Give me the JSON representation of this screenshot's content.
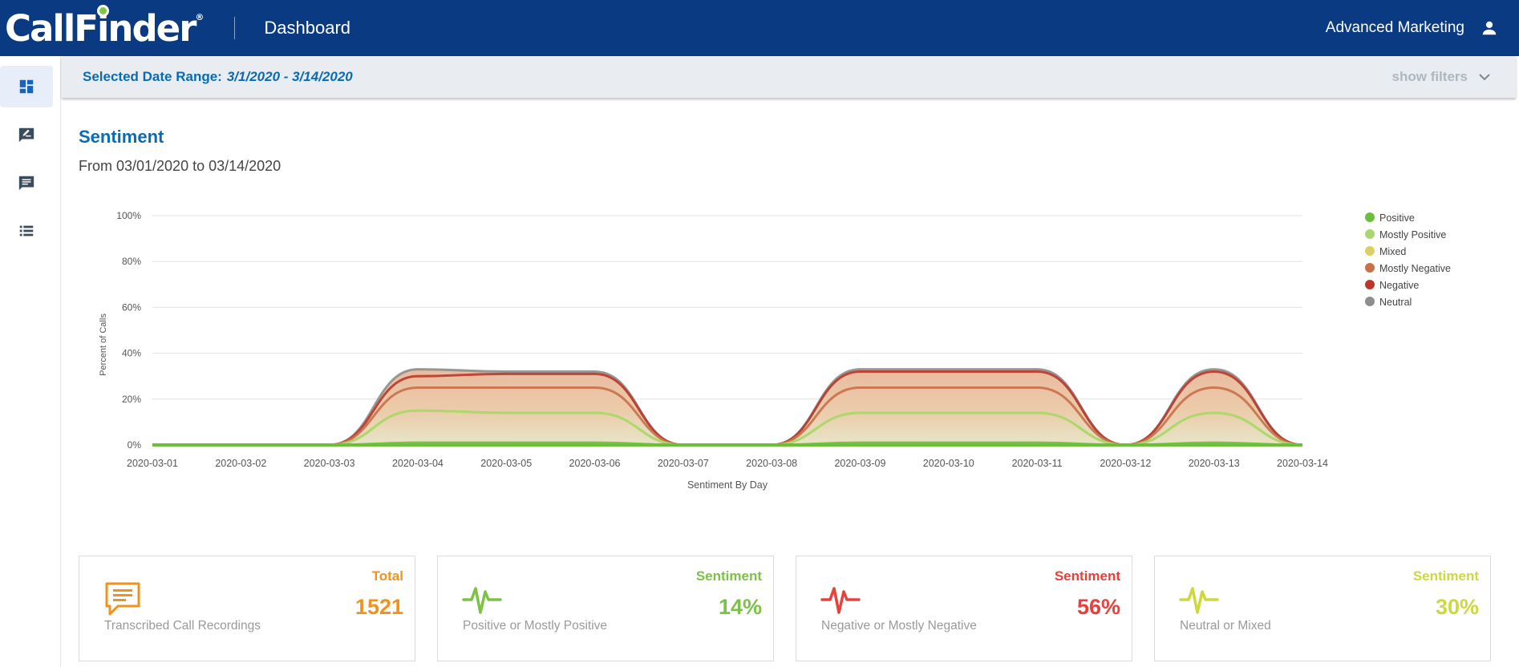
{
  "header": {
    "logo_main": "CallF",
    "logo_i": "i",
    "logo_end": "nder",
    "logo_reg": "®",
    "title": "Dashboard",
    "account": "Advanced Marketing",
    "bg_color": "#0a3a82"
  },
  "sidebar": {
    "items": [
      {
        "icon": "dashboard-icon",
        "active": true
      },
      {
        "icon": "edit-note-icon",
        "active": false
      },
      {
        "icon": "chat-icon",
        "active": false
      },
      {
        "icon": "list-icon",
        "active": false
      }
    ]
  },
  "filterbar": {
    "label": "Selected Date Range:",
    "value": "3/1/2020 - 3/14/2020",
    "show_filters": "show filters"
  },
  "section": {
    "title": "Sentiment",
    "subtitle": "From 03/01/2020 to 03/14/2020"
  },
  "chart_data": {
    "type": "area",
    "stacked": true,
    "xlabel": "Sentiment By Day",
    "ylabel": "Percent of Calls",
    "ylim": [
      0,
      100
    ],
    "y_ticks": [
      "0%",
      "20%",
      "40%",
      "60%",
      "80%",
      "100%"
    ],
    "x": [
      "2020-03-01",
      "2020-03-02",
      "2020-03-03",
      "2020-03-04",
      "2020-03-05",
      "2020-03-06",
      "2020-03-07",
      "2020-03-08",
      "2020-03-09",
      "2020-03-10",
      "2020-03-11",
      "2020-03-12",
      "2020-03-13",
      "2020-03-14"
    ],
    "legend_position": "right",
    "grid": true,
    "series": [
      {
        "name": "Positive",
        "color": "#6cbf3a",
        "values": [
          0,
          0,
          0,
          1,
          1,
          1,
          0,
          0,
          1,
          1,
          1,
          0,
          1,
          0
        ]
      },
      {
        "name": "Mostly Positive",
        "color": "#a6d86e",
        "values": [
          0,
          0,
          0,
          14,
          13,
          13,
          0,
          0,
          13,
          13,
          13,
          0,
          13,
          0
        ]
      },
      {
        "name": "Mixed",
        "color": "#dccf67",
        "values": [
          0,
          0,
          0,
          0,
          0,
          0,
          0,
          0,
          0,
          0,
          0,
          0,
          0,
          0
        ]
      },
      {
        "name": "Mostly Negative",
        "color": "#c9704a",
        "values": [
          0,
          0,
          0,
          10,
          11,
          11,
          0,
          0,
          11,
          11,
          11,
          0,
          11,
          0
        ]
      },
      {
        "name": "Negative",
        "color": "#b8392a",
        "values": [
          0,
          0,
          0,
          5,
          6,
          6,
          0,
          0,
          7,
          7,
          7,
          0,
          7,
          0
        ]
      },
      {
        "name": "Neutral",
        "color": "#8e8e8e",
        "values": [
          0,
          0,
          0,
          3,
          1,
          1,
          0,
          0,
          1,
          1,
          1,
          0,
          1,
          0
        ]
      }
    ]
  },
  "cards": [
    {
      "kind": "Total",
      "value": "1521",
      "desc": "Transcribed Call Recordings",
      "color": "#f0921e",
      "icon": "chat-bubble-icon"
    },
    {
      "kind": "Sentiment",
      "value": "14%",
      "desc": "Positive or Mostly Positive",
      "color": "#7cc243",
      "icon": "pulse-icon"
    },
    {
      "kind": "Sentiment",
      "value": "56%",
      "desc": "Negative or Mostly Negative",
      "color": "#e8403a",
      "icon": "pulse-icon"
    },
    {
      "kind": "Sentiment",
      "value": "30%",
      "desc": "Neutral or Mixed",
      "color": "#cdd93a",
      "icon": "pulse-icon"
    }
  ]
}
